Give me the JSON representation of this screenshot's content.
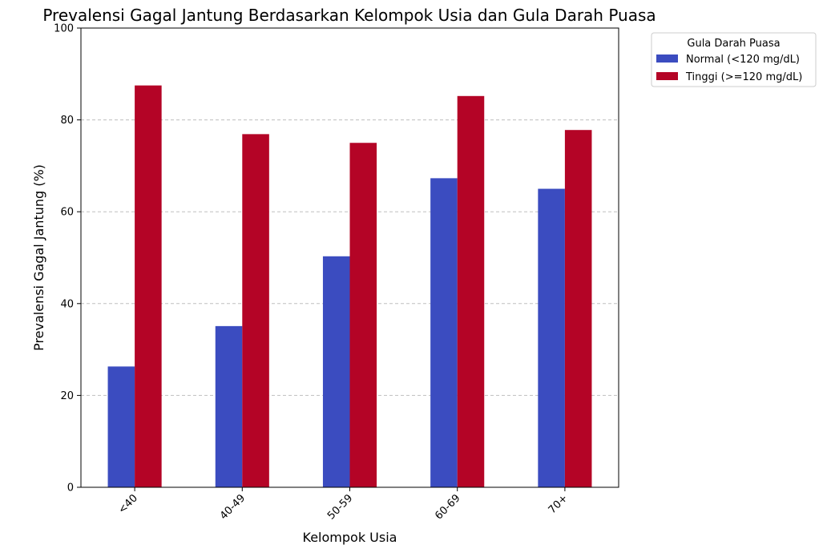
{
  "chart_data": {
    "type": "bar",
    "title": "Prevalensi Gagal Jantung Berdasarkan Kelompok Usia dan Gula Darah Puasa",
    "xlabel": "Kelompok Usia",
    "ylabel": "Prevalensi Gagal Jantung (%)",
    "categories": [
      "<40",
      "40-49",
      "50-59",
      "60-69",
      "70+"
    ],
    "series": [
      {
        "name": "Normal (<120 mg/dL)",
        "values": [
          26.3,
          35.1,
          50.3,
          67.3,
          65.0
        ],
        "color": "#3b4cc0"
      },
      {
        "name": "Tinggi (>=120 mg/dL)",
        "values": [
          87.5,
          76.9,
          75.0,
          85.2,
          77.8
        ],
        "color": "#b40426"
      }
    ],
    "ylim": [
      0,
      100
    ],
    "yticks": [
      0,
      20,
      40,
      60,
      80,
      100
    ],
    "grid": "y-dashed",
    "legend": {
      "title": "Gula Darah Puasa",
      "position": "outside-top-right"
    }
  }
}
